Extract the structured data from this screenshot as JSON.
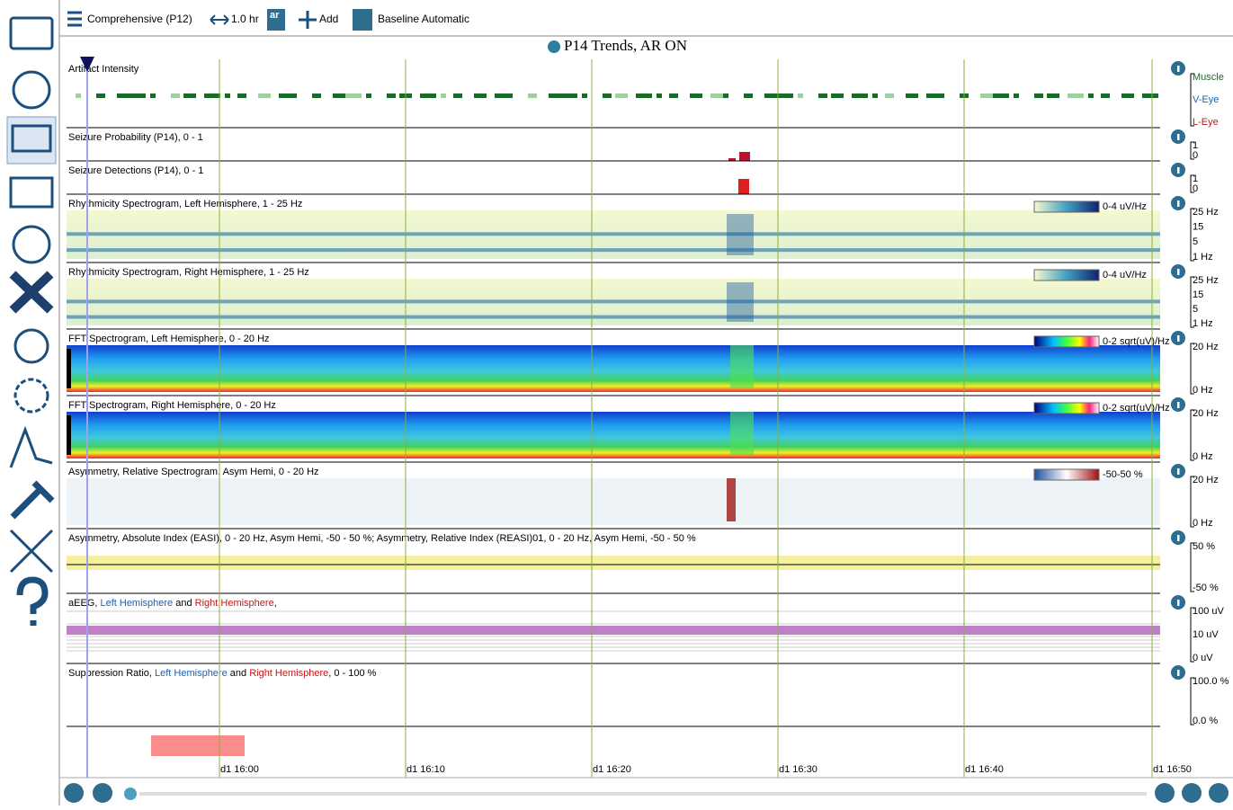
{
  "toolbar": {
    "montage": "Comprehensive (P12)",
    "duration": "1.0 hr",
    "ar": "ar",
    "add": "Add",
    "baseline": "Baseline Automatic"
  },
  "title": "P14 Trends, AR ON",
  "panels": [
    {
      "title": "Artifact Intensity",
      "axis_labels": [
        "Muscle",
        "V-Eye",
        "L-Eye"
      ]
    },
    {
      "title": "Seizure Probability (P14), 0 - 1",
      "axis_labels": [
        "1",
        "0"
      ]
    },
    {
      "title": "Seizure Detections (P14), 0 - 1",
      "axis_labels": [
        "1",
        "0"
      ]
    },
    {
      "title": "Rhythmicity Spectrogram, Left Hemisphere, 1 - 25 Hz",
      "scale_label": "0-4 uV/Hz",
      "axis_labels": [
        "25 Hz",
        "15",
        "5",
        "1 Hz"
      ]
    },
    {
      "title": "Rhythmicity Spectrogram, Right Hemisphere, 1 - 25 Hz",
      "scale_label": "0-4 uV/Hz",
      "axis_labels": [
        "25 Hz",
        "15",
        "5",
        "1 Hz"
      ]
    },
    {
      "title": "FFT Spectrogram, Left Hemisphere, 0 - 20 Hz",
      "scale_label": "0-2 sqrt(uV)/Hz",
      "axis_labels": [
        "20 Hz",
        "0 Hz"
      ]
    },
    {
      "title": "FFT Spectrogram, Right Hemisphere, 0 - 20 Hz",
      "scale_label": "0-2 sqrt(uV)/Hz",
      "axis_labels": [
        "20 Hz",
        "0 Hz"
      ]
    },
    {
      "title": "Asymmetry, Relative Spectrogram, Asym Hemi, 0 - 20 Hz",
      "scale_label": "-50-50 %",
      "axis_labels": [
        "20 Hz",
        "0 Hz"
      ]
    },
    {
      "title": "Asymmetry, Absolute Index (EASI), 0 - 20 Hz, Asym Hemi, -50 - 50 %; Asymmetry, Relative Index (REASI)01, 0 - 20 Hz, Asym Hemi, -50 - 50 %",
      "axis_labels": [
        "50 %",
        "-50 %"
      ]
    },
    {
      "title_parts": [
        "aEEG, ",
        "Left Hemisphere",
        " and ",
        "Right Hemisphere",
        ","
      ],
      "axis_labels": [
        "100 uV",
        "10 uV",
        "0 uV"
      ]
    },
    {
      "title_parts": [
        "Suppression Ratio, ",
        "Left Hemisphere",
        " and ",
        "Right Hemisphere",
        ",  0 - 100 %"
      ],
      "axis_labels": [
        "100.0 %",
        "0.0 %"
      ]
    }
  ],
  "time_labels": [
    "d1 16:00",
    "d1 16:10",
    "d1 16:20",
    "d1 16:30",
    "d1 16:40",
    "d1 16:50"
  ]
}
